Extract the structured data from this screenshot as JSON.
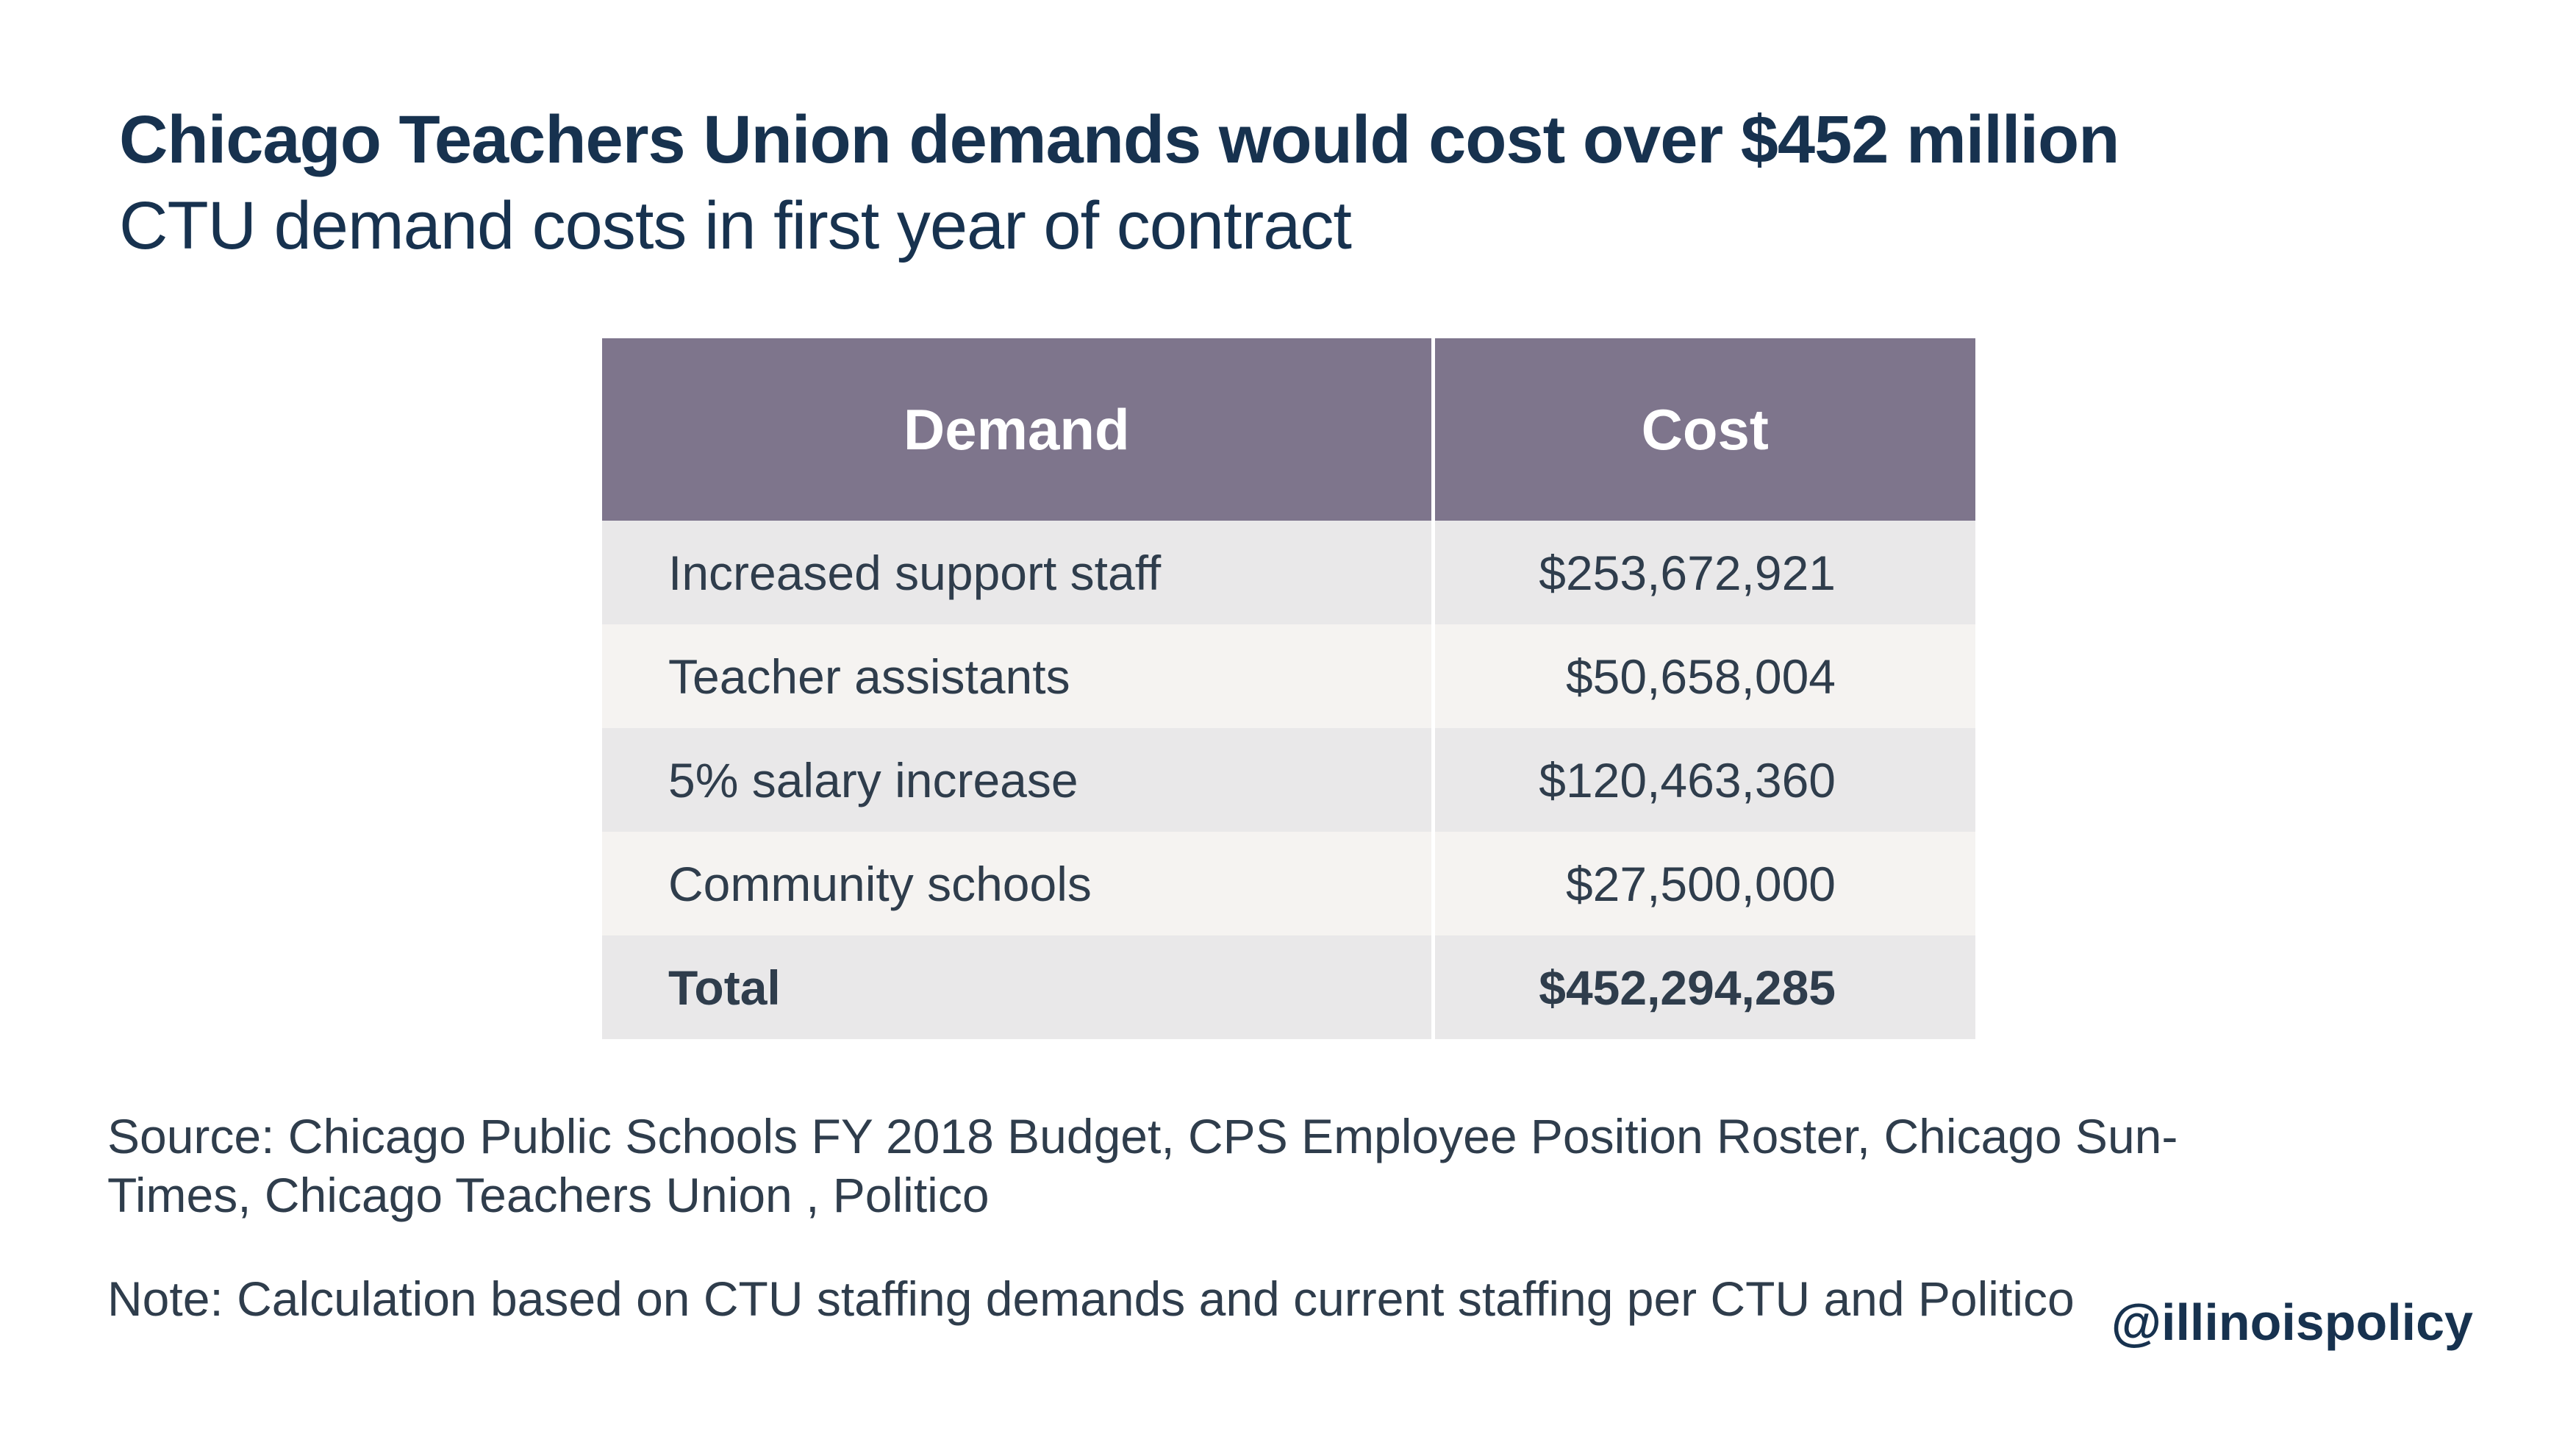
{
  "title": "Chicago Teachers Union demands would cost over $452 million",
  "subtitle": "CTU demand costs in first year of contract",
  "chart_data": {
    "type": "table",
    "columns": [
      "Demand",
      "Cost"
    ],
    "rows": [
      {
        "demand": "Increased support staff",
        "cost": "$253,672,921",
        "value": 253672921
      },
      {
        "demand": "Teacher assistants",
        "cost": "$50,658,004",
        "value": 50658004
      },
      {
        "demand": "5% salary increase",
        "cost": "$120,463,360",
        "value": 120463360
      },
      {
        "demand": "Community schools",
        "cost": "$27,500,000",
        "value": 27500000
      },
      {
        "demand": "Total",
        "cost": "$452,294,285",
        "value": 452294285
      }
    ]
  },
  "source": "Source: Chicago Public Schools FY 2018 Budget, CPS Employee Position Roster, Chicago Sun-Times, Chicago Teachers Union , Politico",
  "note": "Note: Calculation based on CTU staffing demands and current staffing per CTU and Politico",
  "handle": "@illinoispolicy",
  "colors": {
    "header_bg": "#7e758c",
    "row_dark": "#e9e8e9",
    "row_light": "#f5f3f1",
    "title": "#17324f",
    "body_text": "#2f3d4c"
  }
}
